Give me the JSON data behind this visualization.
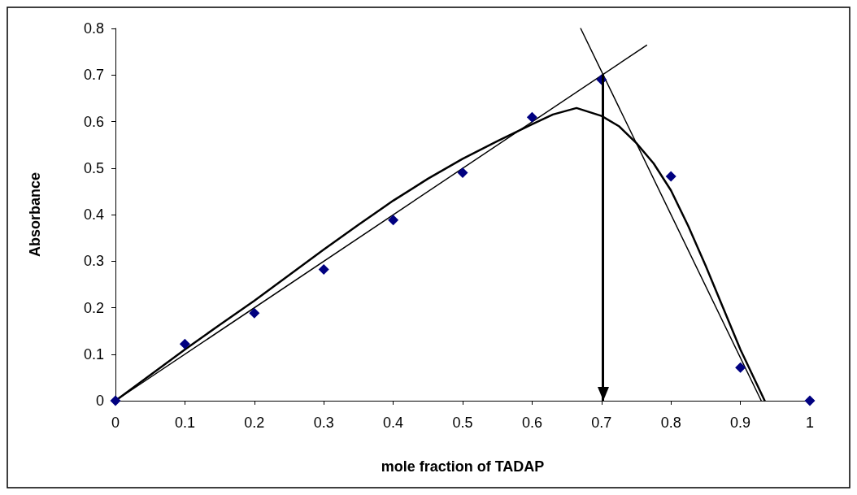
{
  "chart_data": {
    "type": "scatter",
    "xlabel": "mole fraction of TADAP",
    "ylabel": "Absorbance",
    "xlim": [
      0,
      1
    ],
    "xticks": [
      0,
      0.1,
      0.2,
      0.3,
      0.4,
      0.5,
      0.6,
      0.7,
      0.8,
      0.9,
      1
    ],
    "ylim": [
      0,
      0.8
    ],
    "yticks": [
      0,
      0.1,
      0.2,
      0.3,
      0.4,
      0.5,
      0.6,
      0.7,
      0.8
    ],
    "grid": false,
    "marker": "diamond",
    "series": [
      {
        "color": "#000080",
        "x": [
          0,
          0.1,
          0.2,
          0.3,
          0.4,
          0.5,
          0.6,
          0.7,
          0.8,
          0.9,
          1
        ],
        "values": [
          0,
          0.122,
          0.188,
          0.282,
          0.388,
          0.49,
          0.609,
          0.69,
          0.482,
          0.071,
          0
        ]
      },
      {
        "type": "line",
        "color": "#000000",
        "marker": "none",
        "x": [
          0,
          0.05,
          0.1,
          0.15,
          0.2,
          0.25,
          0.3,
          0.35,
          0.4,
          0.45,
          0.5,
          0.55,
          0.6,
          0.63,
          0.664,
          0.7,
          0.725,
          0.75,
          0.775,
          0.8,
          0.825,
          0.85,
          0.875,
          0.9,
          0.935
        ],
        "values": [
          0,
          0.055,
          0.11,
          0.163,
          0.215,
          0.27,
          0.325,
          0.378,
          0.43,
          0.477,
          0.52,
          0.558,
          0.594,
          0.615,
          0.629,
          0.612,
          0.59,
          0.554,
          0.51,
          0.452,
          0.375,
          0.29,
          0.2,
          0.11,
          0
        ]
      },
      {
        "type": "line",
        "color": "#000000",
        "marker": "none",
        "x": [
          0,
          0.765
        ],
        "values": [
          0,
          0.764
        ]
      },
      {
        "type": "line",
        "color": "#000000",
        "marker": "none",
        "x": [
          0.67,
          0.93
        ],
        "values": [
          0.8,
          0
        ]
      }
    ],
    "ref_lines": [
      {
        "axis": "x",
        "value": 0.702,
        "color": "#000000",
        "line_style": "solid"
      }
    ]
  }
}
